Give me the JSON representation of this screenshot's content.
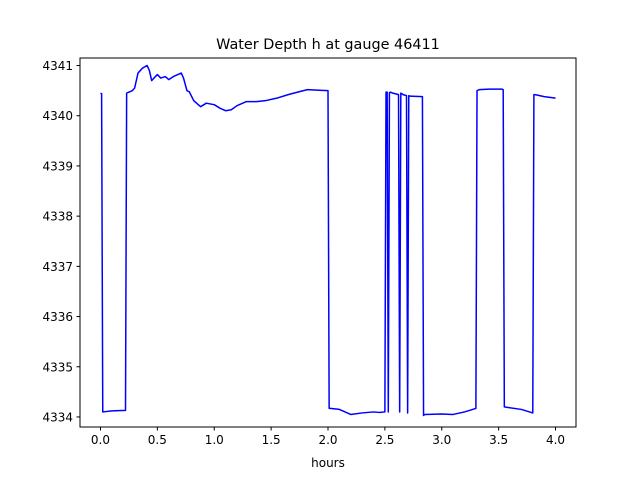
{
  "chart_data": {
    "type": "line",
    "title": "Water Depth h at gauge 46411",
    "xlabel": "hours",
    "ylabel": "",
    "xlim": [
      -0.18,
      4.18
    ],
    "ylim": [
      4333.8,
      4341.15
    ],
    "xticks": [
      0.0,
      0.5,
      1.0,
      1.5,
      2.0,
      2.5,
      3.0,
      3.5,
      4.0
    ],
    "xtick_labels": [
      "0.0",
      "0.5",
      "1.0",
      "1.5",
      "2.0",
      "2.5",
      "3.0",
      "3.5",
      "4.0"
    ],
    "yticks": [
      4334,
      4335,
      4336,
      4337,
      4338,
      4339,
      4340,
      4341
    ],
    "ytick_labels": [
      "4334",
      "4335",
      "4336",
      "4337",
      "4338",
      "4339",
      "4340",
      "4341"
    ],
    "grid": false,
    "legend": "none",
    "series": [
      {
        "color": "#0000ff",
        "x": [
          0.0,
          0.01,
          0.02,
          0.1,
          0.22,
          0.23,
          0.28,
          0.3,
          0.33,
          0.37,
          0.41,
          0.43,
          0.45,
          0.47,
          0.5,
          0.53,
          0.57,
          0.6,
          0.64,
          0.68,
          0.71,
          0.73,
          0.76,
          0.78,
          0.82,
          0.88,
          0.93,
          1.0,
          1.05,
          1.1,
          1.15,
          1.2,
          1.28,
          1.37,
          1.45,
          1.55,
          1.65,
          1.75,
          1.82,
          1.9,
          2.0,
          2.01,
          2.02,
          2.1,
          2.2,
          2.3,
          2.4,
          2.45,
          2.5,
          2.51,
          2.52,
          2.53,
          2.54,
          2.55,
          2.56,
          2.57,
          2.62,
          2.63,
          2.64,
          2.65,
          2.66,
          2.69,
          2.7,
          2.71,
          2.72,
          2.83,
          2.84,
          2.85,
          3.0,
          3.1,
          3.2,
          3.3,
          3.31,
          3.33,
          3.42,
          3.53,
          3.54,
          3.55,
          3.7,
          3.8,
          3.81,
          3.82,
          3.9,
          4.0
        ],
        "y": [
          4340.45,
          4340.44,
          4334.1,
          4334.12,
          4334.13,
          4340.45,
          4340.5,
          4340.55,
          4340.85,
          4340.95,
          4341.0,
          4340.9,
          4340.7,
          4340.75,
          4340.82,
          4340.75,
          4340.78,
          4340.72,
          4340.78,
          4340.82,
          4340.85,
          4340.75,
          4340.5,
          4340.48,
          4340.3,
          4340.18,
          4340.25,
          4340.22,
          4340.15,
          4340.1,
          4340.12,
          4340.2,
          4340.28,
          4340.28,
          4340.3,
          4340.35,
          4340.42,
          4340.48,
          4340.52,
          4340.51,
          4340.5,
          4334.17,
          4334.17,
          4334.15,
          4334.05,
          4334.08,
          4334.1,
          4334.09,
          4334.1,
          4340.47,
          4340.47,
          4334.1,
          4340.46,
          4340.47,
          4340.46,
          4340.45,
          4340.42,
          4334.1,
          4340.45,
          4340.44,
          4340.42,
          4340.4,
          4334.08,
          4340.4,
          4340.39,
          4340.38,
          4334.03,
          4334.05,
          4334.06,
          4334.05,
          4334.1,
          4334.17,
          4340.5,
          4340.52,
          4340.53,
          4340.53,
          4340.52,
          4334.2,
          4334.15,
          4334.08,
          4340.42,
          4340.42,
          4340.38,
          4340.35
        ]
      }
    ]
  }
}
